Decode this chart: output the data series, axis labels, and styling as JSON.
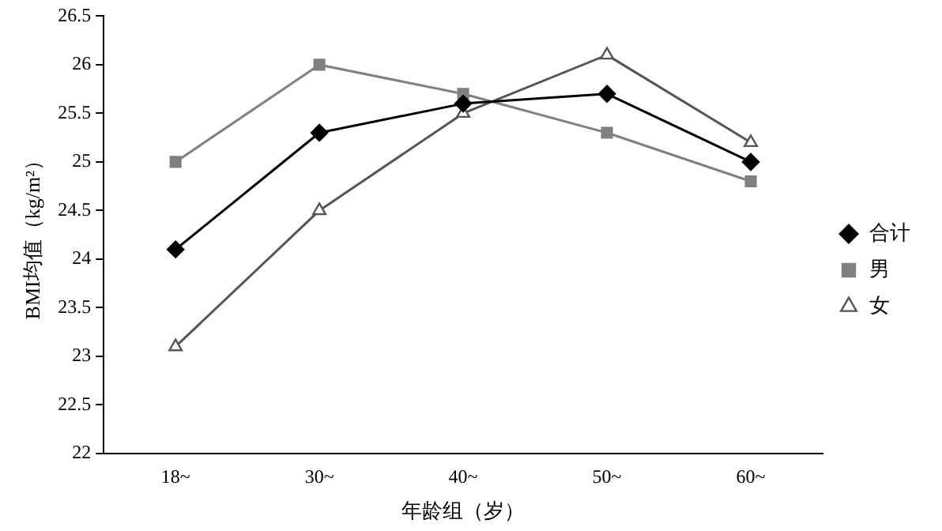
{
  "chart_data": {
    "type": "line",
    "xlabel": "年龄组（岁）",
    "ylabel": "BMI均值（kg/m²）",
    "categories": [
      "18~",
      "30~",
      "40~",
      "50~",
      "60~"
    ],
    "ylim": [
      22,
      26.5
    ],
    "yticks": [
      22,
      22.5,
      23,
      23.5,
      24,
      24.5,
      25,
      25.5,
      26,
      26.5
    ],
    "grid": false,
    "legend": "right",
    "series": [
      {
        "name": "合计",
        "color": "#000000",
        "marker": "diamond",
        "values": [
          24.1,
          25.3,
          25.6,
          25.7,
          25.0
        ]
      },
      {
        "name": "男",
        "color": "#808080",
        "marker": "square",
        "values": [
          25.0,
          26.0,
          25.7,
          25.3,
          24.8
        ]
      },
      {
        "name": "女",
        "color": "#555555",
        "marker": "triangle",
        "values": [
          23.1,
          24.5,
          25.5,
          26.1,
          25.2
        ]
      }
    ]
  }
}
